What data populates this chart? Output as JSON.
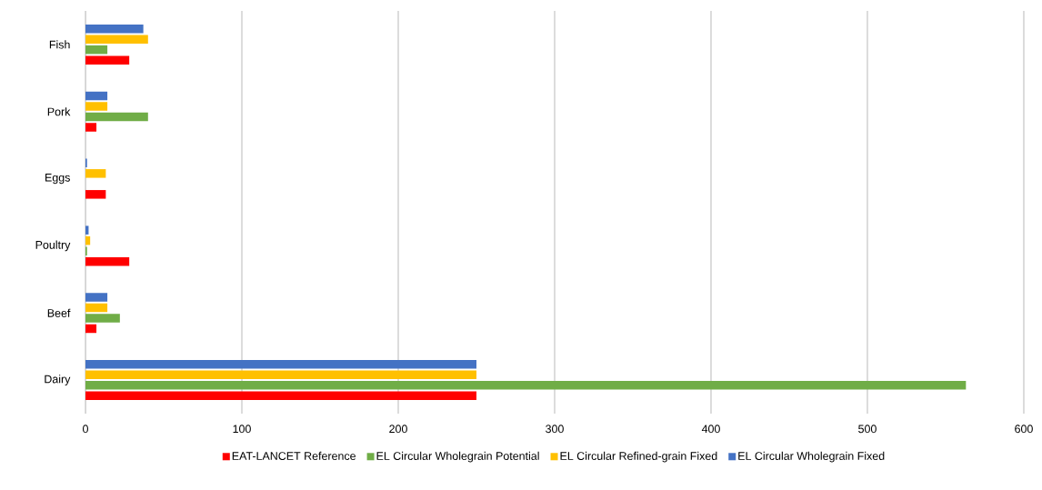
{
  "chart_data": {
    "type": "bar",
    "orientation": "horizontal",
    "categories": [
      "Fish",
      "Pork",
      "Eggs",
      "Poultry",
      "Beef",
      "Dairy"
    ],
    "series": [
      {
        "name": "EAT-LANCET Reference",
        "color": "#ff0000",
        "values": [
          28,
          7,
          13,
          28,
          7,
          250
        ]
      },
      {
        "name": "EL Circular Wholegrain Potential",
        "color": "#70ad47",
        "values": [
          14,
          40,
          0,
          1,
          22,
          563
        ]
      },
      {
        "name": "EL Circular Refined-grain Fixed",
        "color": "#ffc000",
        "values": [
          40,
          14,
          13,
          3,
          14,
          250
        ]
      },
      {
        "name": "EL Circular Wholegrain Fixed",
        "color": "#4472c4",
        "values": [
          37,
          14,
          1,
          2,
          14,
          250
        ]
      }
    ],
    "xlim": [
      0,
      600
    ],
    "xticks": [
      0,
      100,
      200,
      300,
      400,
      500,
      600
    ],
    "grid": "x",
    "legend": "bottom"
  }
}
